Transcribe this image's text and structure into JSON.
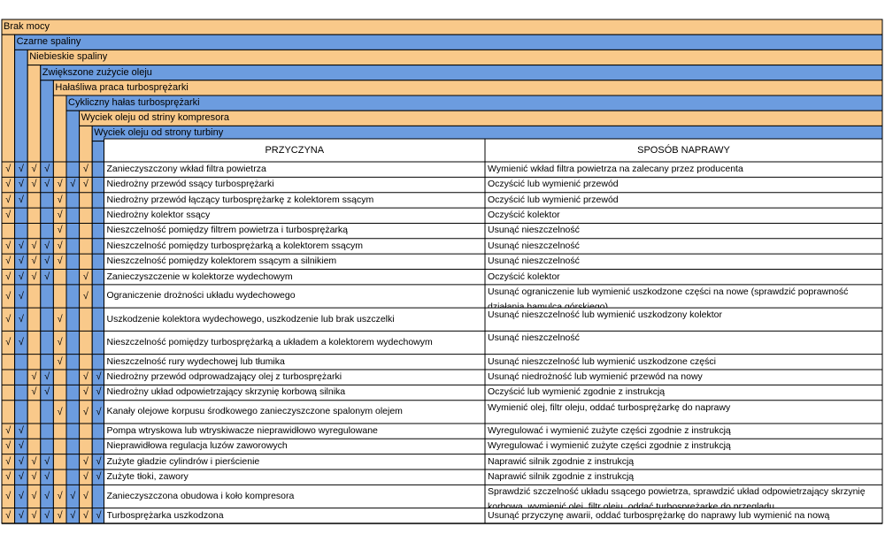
{
  "colors": {
    "symptom_odd": "#F9C98A",
    "symptom_even": "#6C9CDF",
    "border": "#000000",
    "background": "#ffffff"
  },
  "symptoms": [
    "Brak mocy",
    "Czarne spaliny",
    "Niebieskie spaliny",
    "Zwiększone zużycie oleju",
    "Hałaśliwa praca turbosprężarki",
    "Cykliczny hałas turbosprężarki",
    "Wyciek oleju od striny kompresora",
    "Wyciek oleju od strony turbiny"
  ],
  "table": {
    "cause_header": "PRZYCZYNA",
    "remedy_header": "SPOSÓB NAPRAWY",
    "check_mark": "√",
    "rows": [
      {
        "cause": "Zanieczyszczony wkład filtra powietrza",
        "remedy": "Wymienić wkład filtra powietrza na zalecany przez producenta",
        "checks": [
          1,
          1,
          1,
          1,
          0,
          0,
          1,
          0
        ]
      },
      {
        "cause": "Niedrożny przewód ssący turbosprężarki",
        "remedy": "Oczyścić lub wymienić przewód",
        "checks": [
          1,
          1,
          1,
          1,
          1,
          1,
          1,
          0
        ]
      },
      {
        "cause": "Niedrożny przewód łączący turbosprężarkę z kolektorem ssącym",
        "remedy": "Oczyścić lub wymienić przewód",
        "checks": [
          1,
          1,
          0,
          0,
          1,
          0,
          0,
          0
        ]
      },
      {
        "cause": "Niedrożny kolektor ssący",
        "remedy": "Oczyścić kolektor",
        "checks": [
          1,
          0,
          0,
          0,
          1,
          0,
          0,
          0
        ]
      },
      {
        "cause": "Nieszczelność pomiędzy filtrem powietrza i turbosprężarką",
        "remedy": "Usunąć nieszczelność",
        "checks": [
          0,
          0,
          0,
          0,
          1,
          0,
          0,
          0
        ]
      },
      {
        "cause": "Nieszczelność pomiędzy turbosprężarką a kolektorem ssącym",
        "remedy": "Usunąć nieszczelność",
        "checks": [
          1,
          1,
          1,
          1,
          1,
          0,
          0,
          0
        ]
      },
      {
        "cause": "Nieszczelność pomiędzy kolektorem ssącym a silnikiem",
        "remedy": "Usunąć nieszczelność",
        "checks": [
          1,
          1,
          1,
          1,
          1,
          0,
          0,
          0
        ]
      },
      {
        "cause": "Zanieczyszczenie w kolektorze wydechowym",
        "remedy": "Oczyścić kolektor",
        "checks": [
          1,
          1,
          1,
          1,
          0,
          0,
          1,
          0
        ]
      },
      {
        "cause": "Ograniczenie drożności układu wydechowego",
        "remedy": "Usunąć ograniczenie lub wymienić uszkodzone części na nowe (sprawdzić poprawność działania hamulca górskiego)",
        "checks": [
          1,
          1,
          0,
          0,
          0,
          0,
          1,
          0
        ]
      },
      {
        "cause": "Uszkodzenie kolektora wydechowego, uszkodzenie lub brak uszczelki",
        "remedy": "Usunąć nieszczelność lub wymienić uszkodzony kolektor",
        "checks": [
          1,
          1,
          0,
          0,
          1,
          0,
          0,
          0
        ]
      },
      {
        "cause": "Nieszczelność pomiędzy turbosprężarką a układem a kolektorem wydechowym",
        "remedy": "Usunąć nieszczelność",
        "checks": [
          1,
          1,
          0,
          0,
          1,
          0,
          0,
          0
        ]
      },
      {
        "cause": "Nieszczelność rury wydechowej lub tłumika",
        "remedy": "Usunąć nieszczelność lub wymienić uszkodzone części",
        "checks": [
          0,
          0,
          0,
          0,
          1,
          0,
          0,
          0
        ]
      },
      {
        "cause": "Niedrożny przewód odprowadzający olej z turbosprężarki",
        "remedy": "Usunąć niedrożność lub wymienić przewód na nowy",
        "checks": [
          0,
          0,
          1,
          1,
          0,
          0,
          1,
          1
        ]
      },
      {
        "cause": "Niedrożny układ odpowietrzający skrzynię korbową silnika",
        "remedy": "Oczyścić lub wymienić zgodnie z instrukcją",
        "checks": [
          0,
          0,
          1,
          1,
          0,
          0,
          1,
          1
        ]
      },
      {
        "cause": "Kanały olejowe korpusu środkowego zanieczyszczone spalonym olejem",
        "remedy": "Wymienić olej, filtr oleju, oddać turbosprężarkę do naprawy",
        "checks": [
          0,
          0,
          0,
          0,
          1,
          0,
          1,
          1
        ]
      },
      {
        "cause": "Pompa wtryskowa lub wtryskiwacze nieprawidłowo wyregulowane",
        "remedy": "Wyregulować i wymienić zużyte części zgodnie z instrukcją",
        "checks": [
          1,
          1,
          0,
          0,
          0,
          0,
          0,
          0
        ]
      },
      {
        "cause": "Nieprawidłowa regulacja luzów zaworowych",
        "remedy": "Wyregulować i wymienić zużyte części zgodnie z instrukcją",
        "checks": [
          1,
          1,
          0,
          0,
          0,
          0,
          0,
          0
        ]
      },
      {
        "cause": "Zużyte gładzie cylindrów i pierścienie",
        "remedy": "Naprawić silnik zgodnie z instrukcją",
        "checks": [
          1,
          1,
          1,
          1,
          0,
          0,
          1,
          1
        ]
      },
      {
        "cause": "Zużyte tłoki, zawory",
        "remedy": "Naprawić silnik zgodnie z instrukcją",
        "checks": [
          1,
          1,
          1,
          1,
          0,
          0,
          1,
          1
        ]
      },
      {
        "cause": "Zanieczyszczona obudowa i koło kompresora",
        "remedy": "Sprawdzić szczelność układu ssącego powietrza, sprawdzić układ odpowietrzający skrzynię korbową, wymienić olej, filtr oleju, oddać turbosprężarkę do przeglądu",
        "checks": [
          1,
          1,
          1,
          1,
          1,
          1,
          1,
          0
        ]
      },
      {
        "cause": "Turbosprężarka uszkodzona",
        "remedy": "Usunąć przyczynę awarii, oddać turbosprężarkę do naprawy lub wymienić na nową",
        "checks": [
          1,
          1,
          1,
          1,
          1,
          1,
          1,
          1
        ]
      }
    ]
  }
}
